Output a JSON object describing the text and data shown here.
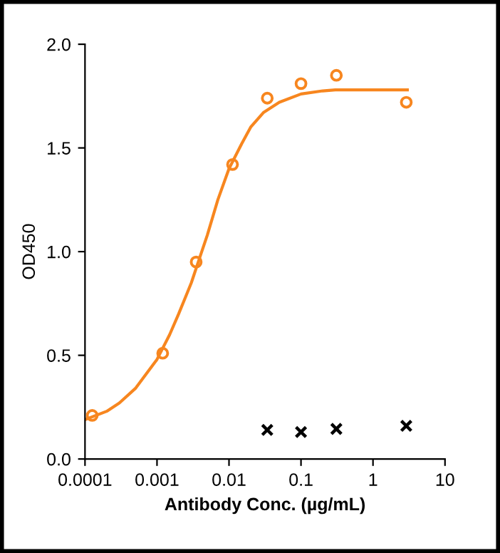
{
  "chart_data": {
    "type": "scatter",
    "xlabel": "Antibody Conc. (µg/mL)",
    "ylabel": "OD450",
    "log": "x",
    "xlim": [
      0.0001,
      10
    ],
    "xticks": [
      {
        "value": 0.0001,
        "label": "0.0001"
      },
      {
        "value": 0.001,
        "label": "0.001"
      },
      {
        "value": 0.01,
        "label": "0.01"
      },
      {
        "value": 0.1,
        "label": "0.1"
      },
      {
        "value": 1,
        "label": "1"
      },
      {
        "value": 10,
        "label": "10"
      }
    ],
    "ylim": [
      0,
      2
    ],
    "yticks": [
      {
        "value": 0,
        "label": "0.0"
      },
      {
        "value": 0.5,
        "label": "0.5"
      },
      {
        "value": 1,
        "label": "1.0"
      },
      {
        "value": 1.5,
        "label": "1.5"
      },
      {
        "value": 2,
        "label": "2.0"
      }
    ],
    "grid": false,
    "legend": false,
    "series": [
      {
        "type": "line",
        "color": "#f7861f",
        "x": [
          0.0001,
          0.0002,
          0.0003,
          0.0005,
          0.001,
          0.0015,
          0.002,
          0.003,
          0.004,
          0.005,
          0.007,
          0.01,
          0.015,
          0.02,
          0.03,
          0.05,
          0.1,
          0.2,
          0.3,
          1,
          3
        ],
        "values": [
          0.19,
          0.23,
          0.27,
          0.34,
          0.48,
          0.6,
          0.7,
          0.85,
          0.98,
          1.08,
          1.25,
          1.4,
          1.52,
          1.6,
          1.67,
          1.72,
          1.76,
          1.775,
          1.78,
          1.78,
          1.78
        ],
        "marker": "none",
        "line_style": "solid"
      },
      {
        "color": "#f7861f",
        "x": [
          0.000126,
          0.0012,
          0.0035,
          0.0112,
          0.034,
          0.1,
          0.31,
          2.9
        ],
        "values": [
          0.21,
          0.51,
          0.95,
          1.42,
          1.74,
          1.81,
          1.85,
          1.72
        ],
        "marker": "circle"
      },
      {
        "color": "#000000",
        "x": [
          0.034,
          0.1,
          0.31,
          2.9
        ],
        "values": [
          0.14,
          0.13,
          0.145,
          0.16
        ],
        "marker": "cross"
      }
    ]
  }
}
